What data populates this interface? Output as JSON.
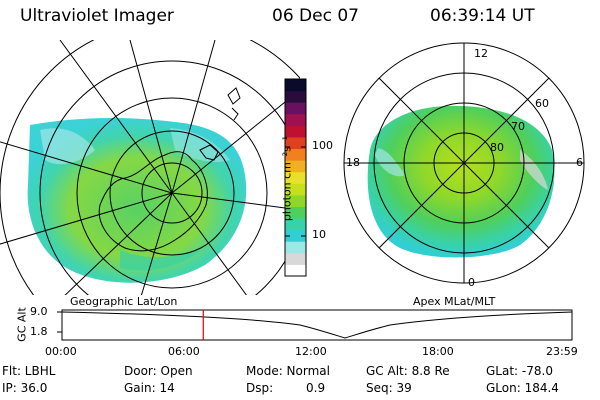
{
  "header": {
    "instrument": "Ultraviolet Imager",
    "date": "06 Dec 07",
    "time": "06:39:14 UT"
  },
  "colorbar": {
    "unit_label": "photon cm⁻²s⁻¹",
    "ticks": [
      "100",
      "10"
    ],
    "colors": [
      "#ffffff",
      "#d8d8d8",
      "#9fe6e6",
      "#31cfd4",
      "#38d2a8",
      "#4fcf5c",
      "#8fd82a",
      "#c6e01c",
      "#e8e02a",
      "#f0b020",
      "#f08020",
      "#e04020",
      "#c01030",
      "#a01050",
      "#6a1060",
      "#2a0c3c",
      "#0a0a2a"
    ]
  },
  "left_map": {
    "caption": "Geographic Lat/Lon"
  },
  "right_map": {
    "caption": "Apex MLat/MLT",
    "mlt_labels": {
      "top": "12",
      "left": "18",
      "right": "6",
      "bottom": "0"
    },
    "lat_labels": [
      "60",
      "70",
      "80"
    ]
  },
  "altitude_plot": {
    "ylabel": "GC Alt",
    "yticks": [
      "9.0",
      "1.8"
    ],
    "xticks": [
      "00:00",
      "06:00",
      "12:00",
      "18:00",
      "23:59"
    ],
    "current_time_fraction": 0.277,
    "marker_color": "#e00000"
  },
  "info": {
    "row1": {
      "filter": "Flt: LBHL",
      "door": "Door: Open",
      "mode": "Mode: Normal",
      "gc_alt": "GC Alt: 8.8 Re",
      "glat": "GLat: -78.0"
    },
    "row2": {
      "ip": "IP: 36.0",
      "gain": "Gain: 14",
      "dsp_label": "Dsp:",
      "dsp_value": "0.9",
      "seq": "Seq: 39",
      "glon": "GLon: 184.4"
    }
  }
}
